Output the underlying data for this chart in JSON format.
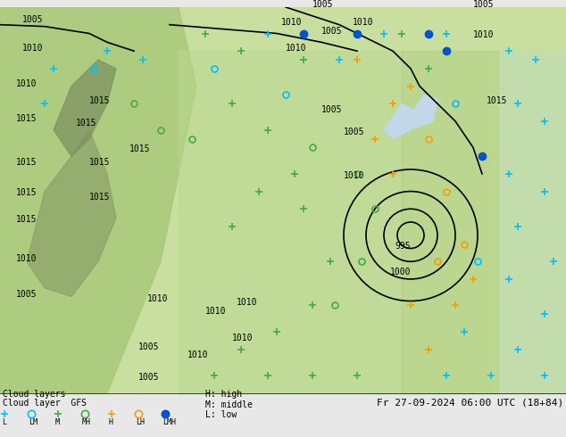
{
  "title_line1": "Cloud layers",
  "title_line2": "Cloud layer  GFS",
  "date_str": "Fr 27-09-2024 06:00 UTC (18+84)",
  "legend_left": [
    {
      "symbol": "+",
      "color": "#00bfff",
      "label": "L"
    },
    {
      "symbol": "o",
      "color": "#00bfff",
      "label": "LM"
    },
    {
      "symbol": "+",
      "color": "#00cc44",
      "label": "M"
    },
    {
      "symbol": "o",
      "color": "#00cc44",
      "label": "MH"
    },
    {
      "symbol": "+",
      "color": "#ff9900",
      "label": "H"
    },
    {
      "symbol": "o",
      "color": "#ff9900",
      "label": "LH"
    },
    {
      "symbol": "o_filled",
      "color": "#0066ff",
      "label": "LMH"
    }
  ],
  "legend_right": [
    "H: high",
    "M: middle",
    "L: low"
  ],
  "bg_color": "#d0e8b0",
  "map_bg": "#c8dfa0",
  "bottom_bar_color": "#e8e8e8",
  "figsize": [
    6.34,
    4.9
  ],
  "dpi": 100
}
